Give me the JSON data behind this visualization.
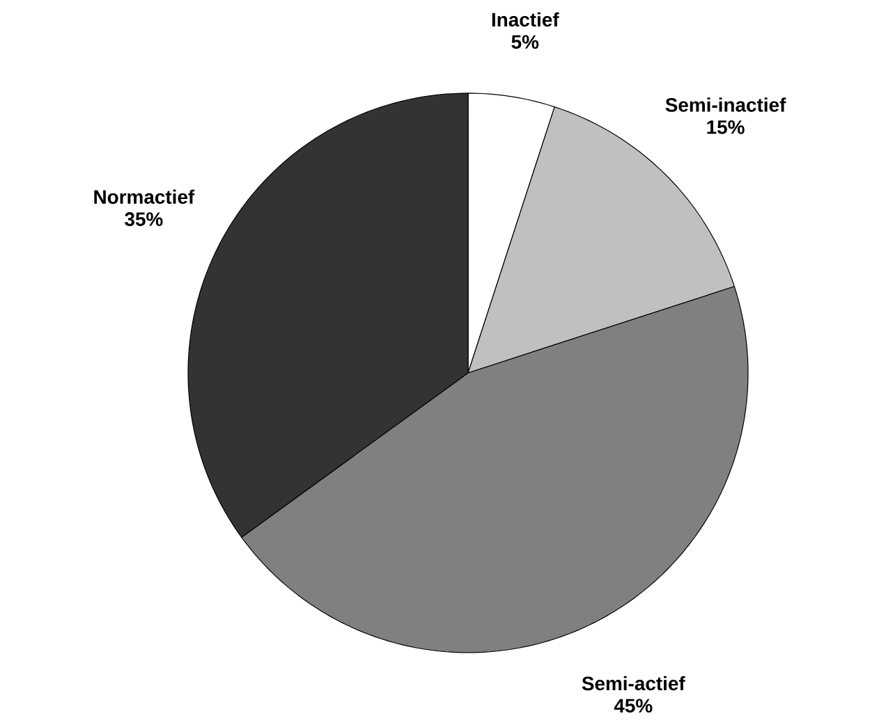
{
  "chart_data": {
    "type": "pie",
    "categories": [
      "Inactief",
      "Semi-inactief",
      "Semi-actief",
      "Normactief"
    ],
    "values": [
      5,
      15,
      45,
      35
    ],
    "value_labels": [
      "5%",
      "15%",
      "45%",
      "35%"
    ],
    "colors": [
      "#ffffff",
      "#c0c0c0",
      "#808080",
      "#333333"
    ]
  }
}
